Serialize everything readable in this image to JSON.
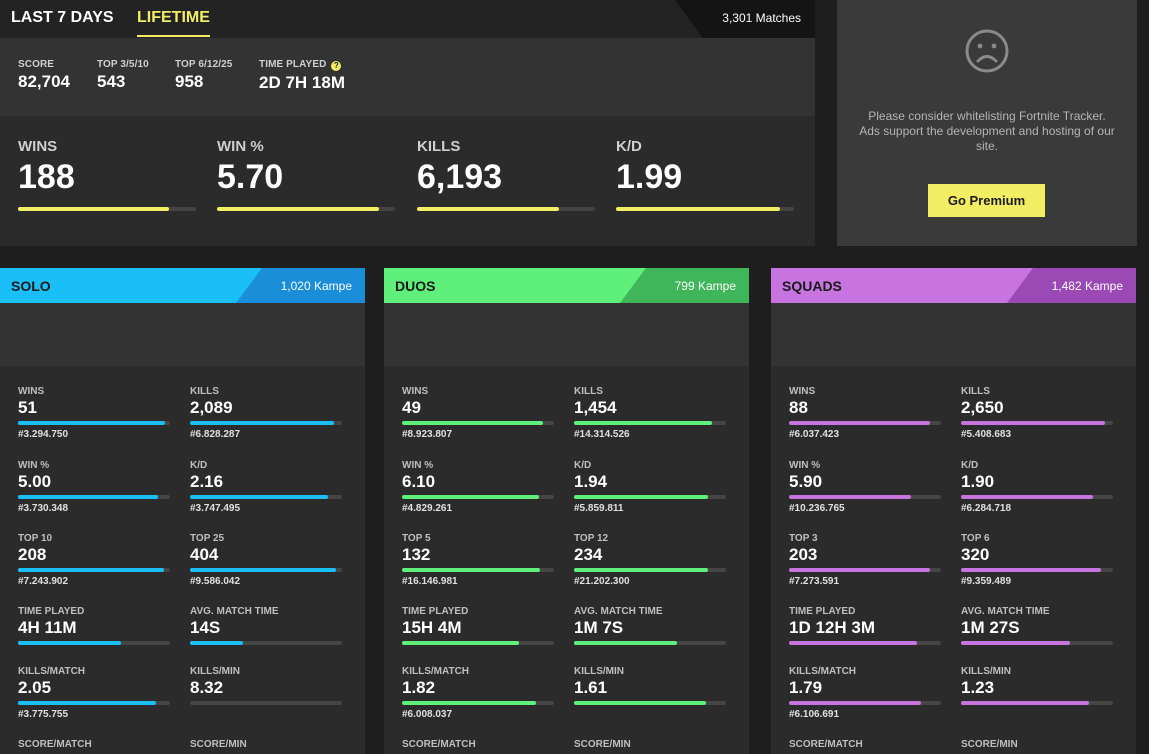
{
  "tabs": {
    "last7": "LAST 7 DAYS",
    "lifetime": "LIFETIME"
  },
  "matches": "3,301 Matches",
  "summary": [
    {
      "label": "SCORE",
      "value": "82,704"
    },
    {
      "label": "TOP 3/5/10",
      "value": "543"
    },
    {
      "label": "TOP 6/12/25",
      "value": "958"
    },
    {
      "label": "TIME PLAYED",
      "value": "2D 7H 18M",
      "help": "?"
    }
  ],
  "overview_stats": [
    {
      "label": "WINS",
      "value": "188",
      "progress": 0.85
    },
    {
      "label": "WIN %",
      "value": "5.70",
      "progress": 0.91
    },
    {
      "label": "KILLS",
      "value": "6,193",
      "progress": 0.8
    },
    {
      "label": "K/D",
      "value": "1.99",
      "progress": 0.92
    }
  ],
  "ad": {
    "icon": "sad-face-icon",
    "text": "Please consider whitelisting Fortnite Tracker. Ads support the development and hosting of our site.",
    "button": "Go Premium"
  },
  "colors": {
    "accent": "#f3ed63",
    "solo": "#1bbff7",
    "solo_dark": "#1a8ed8",
    "duos": "#5ef07a",
    "duos_dark": "#3fb659",
    "squads": "#c774e0",
    "squads_dark": "#9a49b5"
  },
  "modes": [
    {
      "title": "SOLO",
      "count": "1,020 Kampe",
      "color": "solo",
      "stats": [
        {
          "label": "WINS",
          "value": "51",
          "rank": "#3.294.750",
          "progress": 0.97
        },
        {
          "label": "KILLS",
          "value": "2,089",
          "rank": "#6.828.287",
          "progress": 0.95
        },
        {
          "label": "WIN %",
          "value": "5.00",
          "rank": "#3.730.348",
          "progress": 0.92
        },
        {
          "label": "K/D",
          "value": "2.16",
          "rank": "#3.747.495",
          "progress": 0.91
        },
        {
          "label": "TOP 10",
          "value": "208",
          "rank": "#7.243.902",
          "progress": 0.96
        },
        {
          "label": "TOP 25",
          "value": "404",
          "rank": "#9.586.042",
          "progress": 0.96
        },
        {
          "label": "TIME PLAYED",
          "value": "4H 11M",
          "rank": "",
          "progress": 0.68
        },
        {
          "label": "AVG. MATCH TIME",
          "value": "14S",
          "rank": "",
          "progress": 0.35
        },
        {
          "label": "KILLS/MATCH",
          "value": "2.05",
          "rank": "#3.775.755",
          "progress": 0.91
        },
        {
          "label": "KILLS/MIN",
          "value": "8.32",
          "rank": "",
          "progress": 0
        },
        {
          "label": "SCORE/MATCH",
          "value": "",
          "rank": "",
          "progress": 0
        },
        {
          "label": "SCORE/MIN",
          "value": "",
          "rank": "",
          "progress": 0
        }
      ]
    },
    {
      "title": "DUOS",
      "count": "799 Kampe",
      "color": "duos",
      "stats": [
        {
          "label": "WINS",
          "value": "49",
          "rank": "#8.923.807",
          "progress": 0.93
        },
        {
          "label": "KILLS",
          "value": "1,454",
          "rank": "#14.314.526",
          "progress": 0.91
        },
        {
          "label": "WIN %",
          "value": "6.10",
          "rank": "#4.829.261",
          "progress": 0.9
        },
        {
          "label": "K/D",
          "value": "1.94",
          "rank": "#5.859.811",
          "progress": 0.88
        },
        {
          "label": "TOP 5",
          "value": "132",
          "rank": "#16.146.981",
          "progress": 0.91
        },
        {
          "label": "TOP 12",
          "value": "234",
          "rank": "#21.202.300",
          "progress": 0.88
        },
        {
          "label": "TIME PLAYED",
          "value": "15H 4M",
          "rank": "",
          "progress": 0.77
        },
        {
          "label": "AVG. MATCH TIME",
          "value": "1M 7S",
          "rank": "",
          "progress": 0.68
        },
        {
          "label": "KILLS/MATCH",
          "value": "1.82",
          "rank": "#6.008.037",
          "progress": 0.88
        },
        {
          "label": "KILLS/MIN",
          "value": "1.61",
          "rank": "",
          "progress": 0.87
        },
        {
          "label": "SCORE/MATCH",
          "value": "",
          "rank": "",
          "progress": 0
        },
        {
          "label": "SCORE/MIN",
          "value": "",
          "rank": "",
          "progress": 0
        }
      ]
    },
    {
      "title": "SQUADS",
      "count": "1,482 Kampe",
      "color": "squads",
      "stats": [
        {
          "label": "WINS",
          "value": "88",
          "rank": "#6.037.423",
          "progress": 0.93
        },
        {
          "label": "KILLS",
          "value": "2,650",
          "rank": "#5.408.683",
          "progress": 0.95
        },
        {
          "label": "WIN %",
          "value": "5.90",
          "rank": "#10.236.765",
          "progress": 0.8
        },
        {
          "label": "K/D",
          "value": "1.90",
          "rank": "#6.284.718",
          "progress": 0.87
        },
        {
          "label": "TOP 3",
          "value": "203",
          "rank": "#7.273.591",
          "progress": 0.93
        },
        {
          "label": "TOP 6",
          "value": "320",
          "rank": "#9.359.489",
          "progress": 0.92
        },
        {
          "label": "TIME PLAYED",
          "value": "1D 12H 3M",
          "rank": "",
          "progress": 0.84
        },
        {
          "label": "AVG. MATCH TIME",
          "value": "1M 27S",
          "rank": "",
          "progress": 0.72
        },
        {
          "label": "KILLS/MATCH",
          "value": "1.79",
          "rank": "#6.106.691",
          "progress": 0.87
        },
        {
          "label": "KILLS/MIN",
          "value": "1.23",
          "rank": "",
          "progress": 0.84
        },
        {
          "label": "SCORE/MATCH",
          "value": "",
          "rank": "",
          "progress": 0
        },
        {
          "label": "SCORE/MIN",
          "value": "",
          "rank": "",
          "progress": 0
        }
      ]
    }
  ]
}
